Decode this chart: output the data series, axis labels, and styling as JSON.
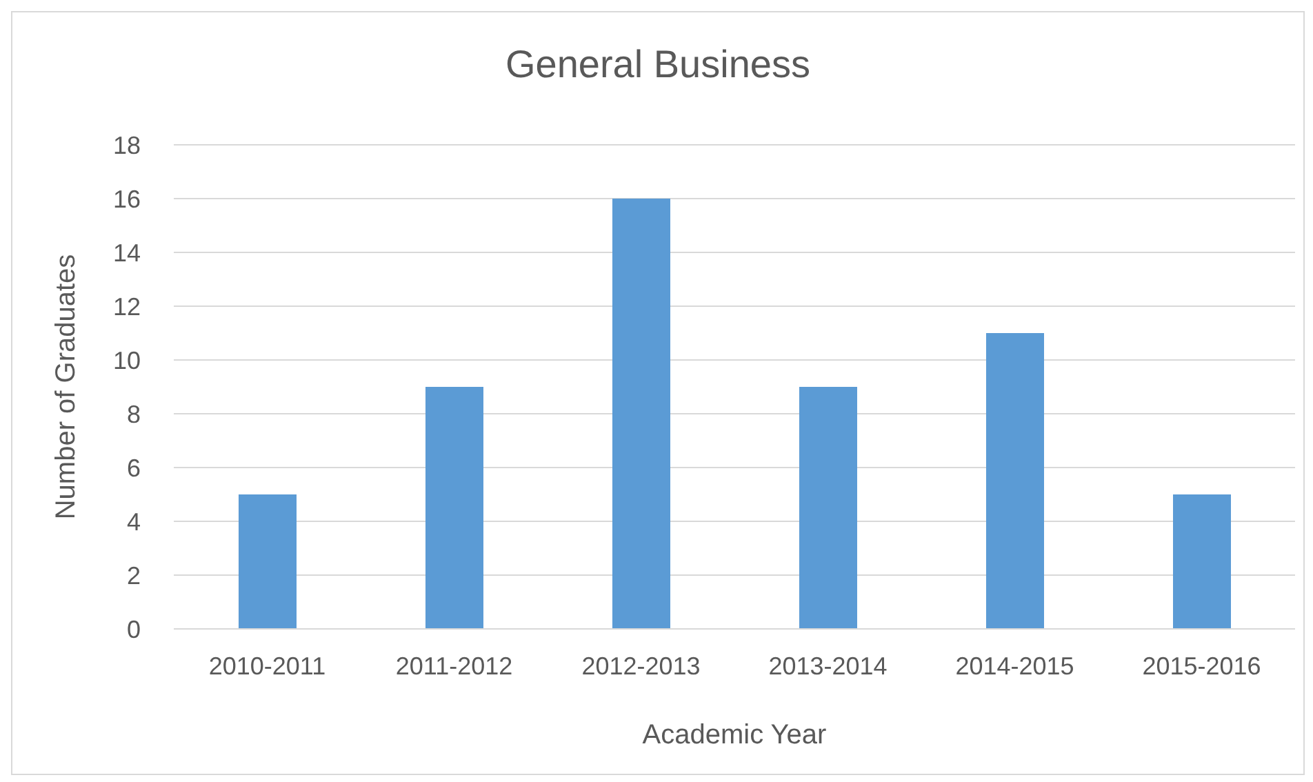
{
  "chart_data": {
    "type": "bar",
    "title": "General Business",
    "xlabel": "Academic Year",
    "ylabel": "Number of Graduates",
    "categories": [
      "2010-2011",
      "2011-2012",
      "2012-2013",
      "2013-2014",
      "2014-2015",
      "2015-2016"
    ],
    "values": [
      5,
      9,
      16,
      9,
      11,
      5
    ],
    "color": "#5b9bd5",
    "ylim": [
      0,
      18
    ],
    "yticks": [
      0,
      2,
      4,
      6,
      8,
      10,
      12,
      14,
      16,
      18
    ],
    "grid": "y"
  }
}
